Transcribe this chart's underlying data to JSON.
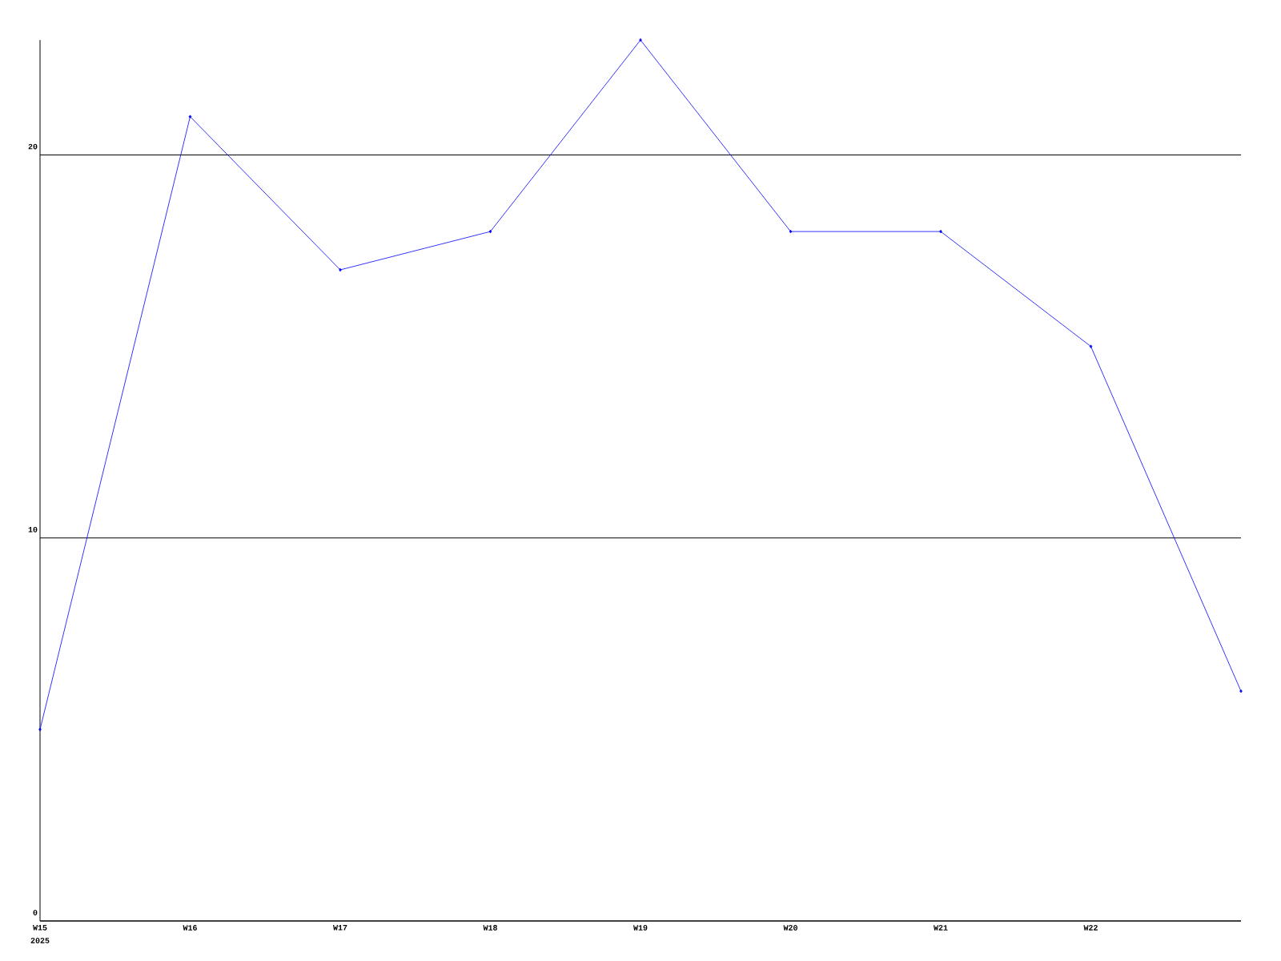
{
  "chart_data": {
    "type": "line",
    "categories": [
      "W15",
      "W16",
      "W17",
      "W18",
      "W19",
      "W20",
      "W21",
      "W22",
      null
    ],
    "values": [
      5,
      21,
      17,
      18,
      23,
      18,
      18,
      15,
      6
    ],
    "color": "#0000ff",
    "ylim": [
      0,
      23
    ],
    "yticks": [
      0,
      10,
      20
    ],
    "grid": "y",
    "marker": "diamond",
    "line_style": "solid",
    "annotations": [
      "2025"
    ]
  }
}
